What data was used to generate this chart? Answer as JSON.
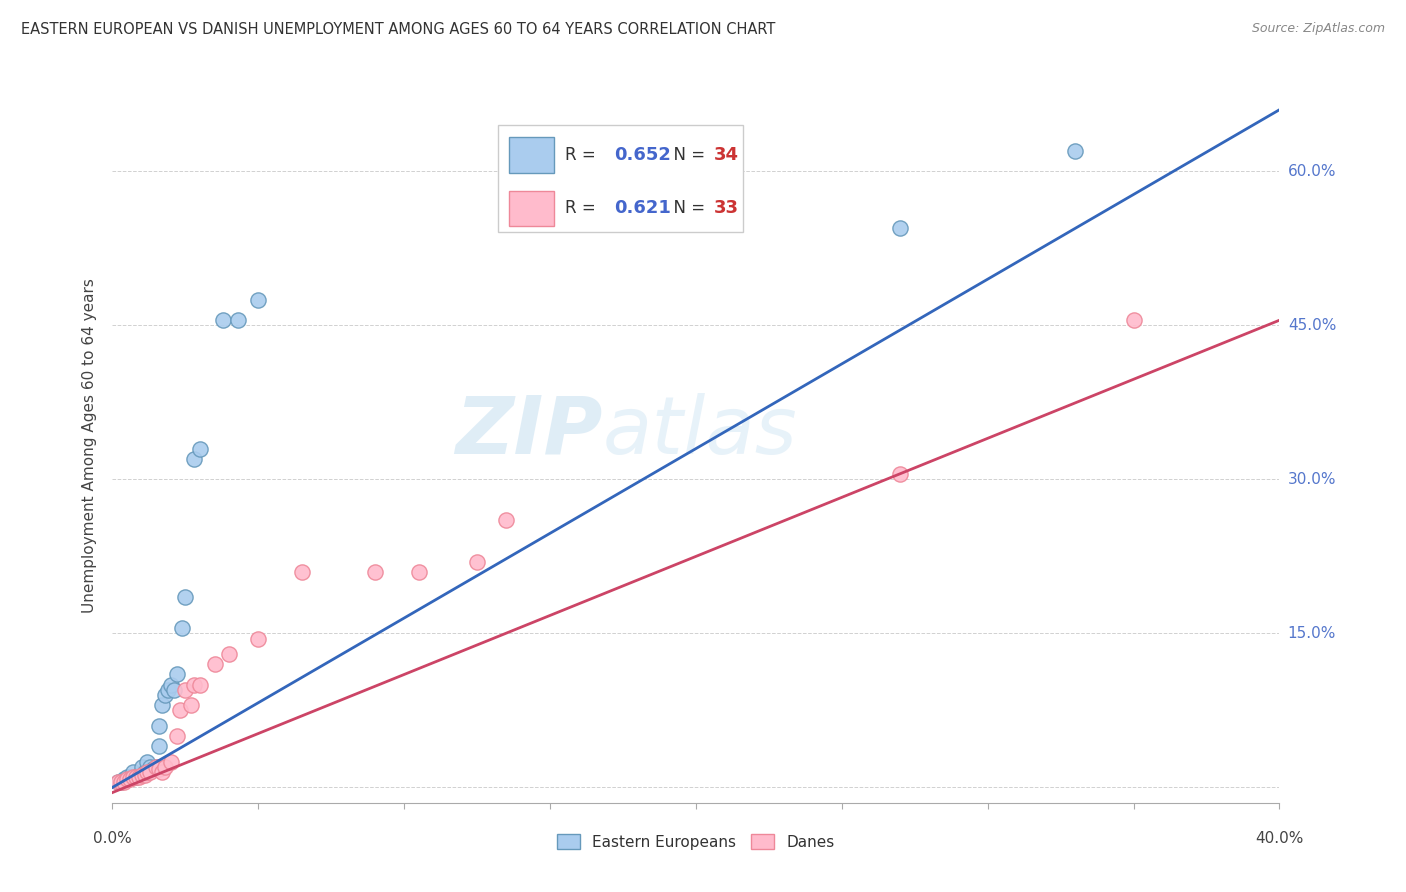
{
  "title": "EASTERN EUROPEAN VS DANISH UNEMPLOYMENT AMONG AGES 60 TO 64 YEARS CORRELATION CHART",
  "source": "Source: ZipAtlas.com",
  "ylabel": "Unemployment Among Ages 60 to 64 years",
  "ytick_values": [
    0.0,
    0.15,
    0.3,
    0.45,
    0.6
  ],
  "ytick_labels_right": [
    "15.0%",
    "30.0%",
    "45.0%",
    "60.0%"
  ],
  "ytick_values_right": [
    0.15,
    0.3,
    0.45,
    0.6
  ],
  "xmin": 0.0,
  "xmax": 0.4,
  "ymin": -0.015,
  "ymax": 0.68,
  "watermark_zip": "ZIP",
  "watermark_atlas": "atlas",
  "legend_blue_R": "0.652",
  "legend_blue_N": "34",
  "legend_pink_R": "0.621",
  "legend_pink_N": "33",
  "blue_line_color": "#3366bb",
  "pink_line_color": "#cc4466",
  "blue_scatter_face": "#aaccee",
  "blue_scatter_edge": "#6699bb",
  "pink_scatter_face": "#ffbbcc",
  "pink_scatter_edge": "#ee8899",
  "blue_x": [
    0.002,
    0.003,
    0.004,
    0.005,
    0.006,
    0.007,
    0.007,
    0.008,
    0.009,
    0.01,
    0.01,
    0.011,
    0.012,
    0.012,
    0.013,
    0.014,
    0.015,
    0.016,
    0.016,
    0.017,
    0.018,
    0.019,
    0.02,
    0.021,
    0.022,
    0.024,
    0.025,
    0.028,
    0.03,
    0.038,
    0.043,
    0.05,
    0.27,
    0.33
  ],
  "blue_y": [
    0.005,
    0.005,
    0.008,
    0.01,
    0.01,
    0.01,
    0.015,
    0.01,
    0.012,
    0.012,
    0.02,
    0.015,
    0.015,
    0.025,
    0.02,
    0.018,
    0.02,
    0.04,
    0.06,
    0.08,
    0.09,
    0.095,
    0.1,
    0.095,
    0.11,
    0.155,
    0.185,
    0.32,
    0.33,
    0.455,
    0.455,
    0.475,
    0.545,
    0.62
  ],
  "pink_x": [
    0.002,
    0.003,
    0.004,
    0.005,
    0.006,
    0.007,
    0.008,
    0.009,
    0.01,
    0.011,
    0.012,
    0.013,
    0.015,
    0.016,
    0.017,
    0.018,
    0.02,
    0.022,
    0.023,
    0.025,
    0.027,
    0.028,
    0.03,
    0.035,
    0.04,
    0.05,
    0.065,
    0.09,
    0.105,
    0.125,
    0.135,
    0.27,
    0.35
  ],
  "pink_y": [
    0.005,
    0.005,
    0.005,
    0.008,
    0.008,
    0.01,
    0.01,
    0.01,
    0.012,
    0.012,
    0.015,
    0.015,
    0.02,
    0.018,
    0.015,
    0.02,
    0.025,
    0.05,
    0.075,
    0.095,
    0.08,
    0.1,
    0.1,
    0.12,
    0.13,
    0.145,
    0.21,
    0.21,
    0.21,
    0.22,
    0.26,
    0.305,
    0.455
  ],
  "blue_line_x0": 0.0,
  "blue_line_x1": 0.4,
  "blue_line_y0": 0.0,
  "blue_line_y1": 0.66,
  "pink_line_x0": 0.0,
  "pink_line_x1": 0.4,
  "pink_line_y0": -0.005,
  "pink_line_y1": 0.455
}
